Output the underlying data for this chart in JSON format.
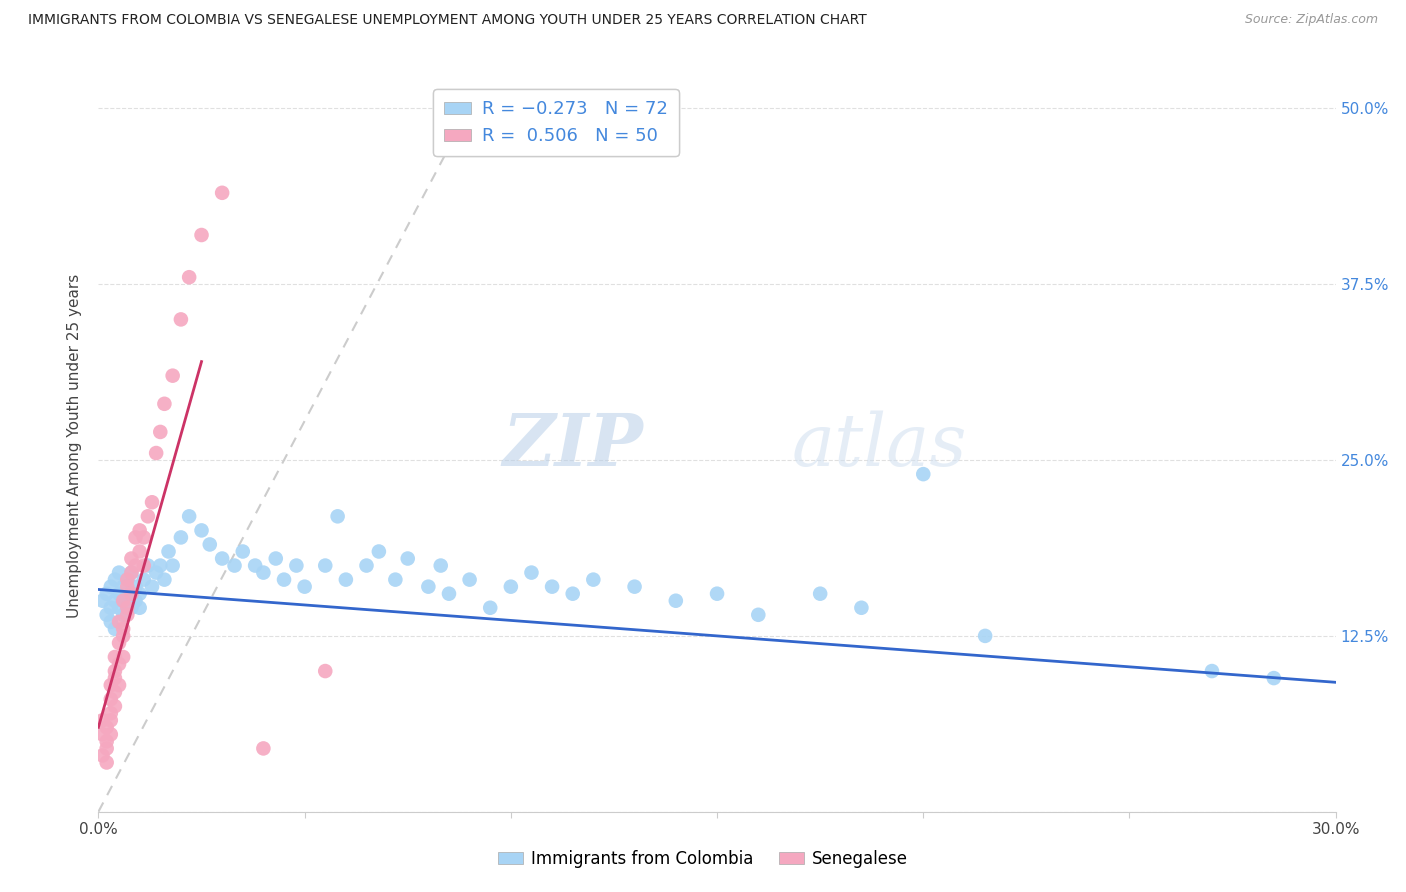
{
  "title": "IMMIGRANTS FROM COLOMBIA VS SENEGALESE UNEMPLOYMENT AMONG YOUTH UNDER 25 YEARS CORRELATION CHART",
  "source": "Source: ZipAtlas.com",
  "ylabel": "Unemployment Among Youth under 25 years",
  "legend_bottom": [
    "Immigrants from Colombia",
    "Senegalese"
  ],
  "blue_R": "-0.273",
  "blue_N": "72",
  "pink_R": "0.506",
  "pink_N": "50",
  "blue_color": "#a8d4f5",
  "pink_color": "#f5a8c0",
  "blue_line_color": "#3366cc",
  "pink_line_color": "#cc3366",
  "diag_line_color": "#cccccc",
  "background_color": "#ffffff",
  "grid_color": "#e0e0e0",
  "xlim": [
    0.0,
    0.3
  ],
  "ylim": [
    0.0,
    0.52
  ],
  "watermark_zip": "ZIP",
  "watermark_atlas": "atlas",
  "blue_scatter_x": [
    0.001,
    0.002,
    0.002,
    0.003,
    0.003,
    0.003,
    0.004,
    0.004,
    0.004,
    0.005,
    0.005,
    0.005,
    0.006,
    0.006,
    0.006,
    0.007,
    0.007,
    0.008,
    0.008,
    0.008,
    0.009,
    0.009,
    0.01,
    0.01,
    0.011,
    0.012,
    0.013,
    0.014,
    0.015,
    0.016,
    0.017,
    0.018,
    0.02,
    0.022,
    0.025,
    0.027,
    0.03,
    0.033,
    0.035,
    0.038,
    0.04,
    0.043,
    0.045,
    0.048,
    0.05,
    0.055,
    0.058,
    0.06,
    0.065,
    0.068,
    0.072,
    0.075,
    0.08,
    0.083,
    0.085,
    0.09,
    0.095,
    0.1,
    0.105,
    0.11,
    0.115,
    0.12,
    0.13,
    0.14,
    0.15,
    0.16,
    0.175,
    0.185,
    0.2,
    0.215,
    0.27,
    0.285
  ],
  "blue_scatter_y": [
    0.15,
    0.155,
    0.14,
    0.16,
    0.145,
    0.135,
    0.15,
    0.165,
    0.13,
    0.155,
    0.145,
    0.17,
    0.15,
    0.14,
    0.16,
    0.155,
    0.165,
    0.145,
    0.155,
    0.17,
    0.15,
    0.16,
    0.155,
    0.145,
    0.165,
    0.175,
    0.16,
    0.17,
    0.175,
    0.165,
    0.185,
    0.175,
    0.195,
    0.21,
    0.2,
    0.19,
    0.18,
    0.175,
    0.185,
    0.175,
    0.17,
    0.18,
    0.165,
    0.175,
    0.16,
    0.175,
    0.21,
    0.165,
    0.175,
    0.185,
    0.165,
    0.18,
    0.16,
    0.175,
    0.155,
    0.165,
    0.145,
    0.16,
    0.17,
    0.16,
    0.155,
    0.165,
    0.16,
    0.15,
    0.155,
    0.14,
    0.155,
    0.145,
    0.24,
    0.125,
    0.1,
    0.095
  ],
  "pink_scatter_x": [
    0.001,
    0.001,
    0.001,
    0.002,
    0.002,
    0.002,
    0.002,
    0.003,
    0.003,
    0.003,
    0.003,
    0.003,
    0.004,
    0.004,
    0.004,
    0.004,
    0.004,
    0.005,
    0.005,
    0.005,
    0.005,
    0.006,
    0.006,
    0.006,
    0.006,
    0.007,
    0.007,
    0.007,
    0.007,
    0.008,
    0.008,
    0.008,
    0.009,
    0.009,
    0.01,
    0.01,
    0.011,
    0.011,
    0.012,
    0.013,
    0.014,
    0.015,
    0.016,
    0.018,
    0.02,
    0.022,
    0.025,
    0.03,
    0.04,
    0.055
  ],
  "pink_scatter_y": [
    0.04,
    0.055,
    0.065,
    0.035,
    0.05,
    0.06,
    0.045,
    0.07,
    0.08,
    0.055,
    0.09,
    0.065,
    0.1,
    0.085,
    0.11,
    0.095,
    0.075,
    0.105,
    0.12,
    0.09,
    0.135,
    0.11,
    0.13,
    0.15,
    0.125,
    0.145,
    0.165,
    0.14,
    0.16,
    0.17,
    0.155,
    0.18,
    0.175,
    0.195,
    0.185,
    0.2,
    0.195,
    0.175,
    0.21,
    0.22,
    0.255,
    0.27,
    0.29,
    0.31,
    0.35,
    0.38,
    0.41,
    0.44,
    0.045,
    0.1
  ],
  "blue_line_x": [
    0.0,
    0.3
  ],
  "blue_line_y": [
    0.158,
    0.092
  ],
  "pink_line_x": [
    0.0,
    0.025
  ],
  "pink_line_y": [
    0.06,
    0.32
  ],
  "diag_line_x": [
    0.0,
    0.09
  ],
  "diag_line_y": [
    0.0,
    0.5
  ]
}
